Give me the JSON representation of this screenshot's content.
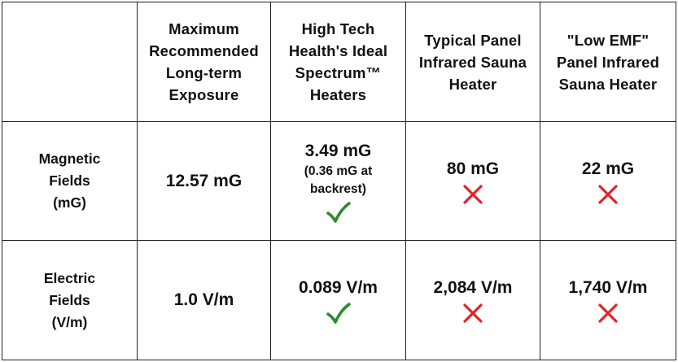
{
  "table": {
    "headers": [
      "",
      "Maximum Recommended Long-term Exposure",
      "High Tech Health's Ideal Spectrum™ Heaters",
      "Typical Panel Infrared Sauna Heater",
      "\"Low EMF\" Panel Infrared Sauna Heater"
    ],
    "header_lines": {
      "col1": [
        "Maximum",
        "Recommended",
        "Long-term",
        "Exposure"
      ],
      "col2": [
        "High Tech",
        "Health's Ideal",
        "Spectrum™",
        "Heaters"
      ],
      "col3": [
        "Typical Panel",
        "Infrared Sauna",
        "Heater"
      ],
      "col4": [
        "\"Low EMF\"",
        "Panel Infrared",
        "Sauna Heater"
      ]
    },
    "rows": [
      {
        "label_lines": [
          "Magnetic",
          "Fields",
          "(mG)"
        ],
        "max_exposure": "12.57 mG",
        "ideal_spectrum": "3.49 mG",
        "ideal_spectrum_note_lines": [
          "(0.36 mG at",
          "backrest)"
        ],
        "ideal_spectrum_mark": "check-icon",
        "typical_panel": "80 mG",
        "typical_panel_mark": "cross-icon",
        "low_emf_panel": "22 mG",
        "low_emf_panel_mark": "cross-icon"
      },
      {
        "label_lines": [
          "Electric",
          "Fields",
          "(V/m)"
        ],
        "max_exposure": "1.0 V/m",
        "ideal_spectrum": "0.089 V/m",
        "ideal_spectrum_mark": "check-icon",
        "typical_panel": "2,084 V/m",
        "typical_panel_mark": "cross-icon",
        "low_emf_panel": "1,740 V/m",
        "low_emf_panel_mark": "cross-icon"
      }
    ]
  },
  "colors": {
    "check": "#2e8b2e",
    "cross": "#e0242a",
    "border": "#222222",
    "text": "#111111"
  }
}
